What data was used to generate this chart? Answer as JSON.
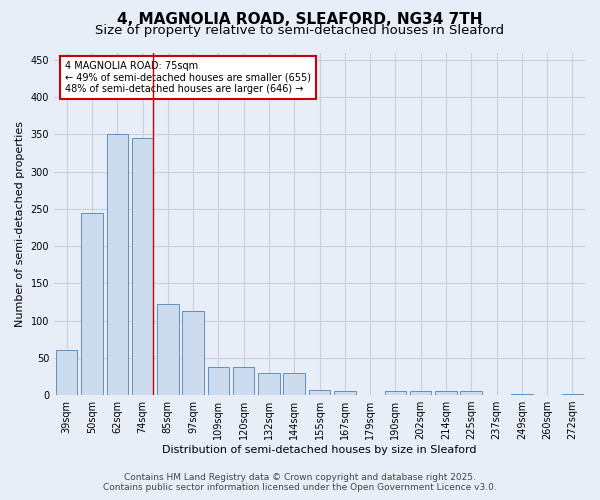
{
  "title_line1": "4, MAGNOLIA ROAD, SLEAFORD, NG34 7TH",
  "title_line2": "Size of property relative to semi-detached houses in Sleaford",
  "xlabel": "Distribution of semi-detached houses by size in Sleaford",
  "ylabel": "Number of semi-detached properties",
  "categories": [
    "39sqm",
    "50sqm",
    "62sqm",
    "74sqm",
    "85sqm",
    "97sqm",
    "109sqm",
    "120sqm",
    "132sqm",
    "144sqm",
    "155sqm",
    "167sqm",
    "179sqm",
    "190sqm",
    "202sqm",
    "214sqm",
    "225sqm",
    "237sqm",
    "249sqm",
    "260sqm",
    "272sqm"
  ],
  "values": [
    60,
    245,
    350,
    345,
    122,
    113,
    38,
    38,
    30,
    30,
    7,
    6,
    0,
    6,
    5,
    6,
    5,
    0,
    1,
    0,
    1
  ],
  "bar_color": "#ccdcee",
  "bar_edge_color": "#6090c0",
  "highlight_bar_index": 3,
  "highlight_line_color": "#cc0000",
  "property_label": "4 MAGNOLIA ROAD: 75sqm",
  "annotation_line1": "← 49% of semi-detached houses are smaller (655)",
  "annotation_line2": "48% of semi-detached houses are larger (646) →",
  "annotation_box_color": "#ffffff",
  "annotation_box_edge_color": "#cc0000",
  "ylim": [
    0,
    460
  ],
  "yticks": [
    0,
    50,
    100,
    150,
    200,
    250,
    300,
    350,
    400,
    450
  ],
  "footer_line1": "Contains HM Land Registry data © Crown copyright and database right 2025.",
  "footer_line2": "Contains public sector information licensed under the Open Government Licence v3.0.",
  "background_color": "#e8eef8",
  "plot_background_color": "#e8eef8",
  "grid_color": "#c8d0e0",
  "title_fontsize": 11,
  "subtitle_fontsize": 9.5,
  "axis_label_fontsize": 8,
  "tick_fontsize": 7,
  "footer_fontsize": 6.5
}
